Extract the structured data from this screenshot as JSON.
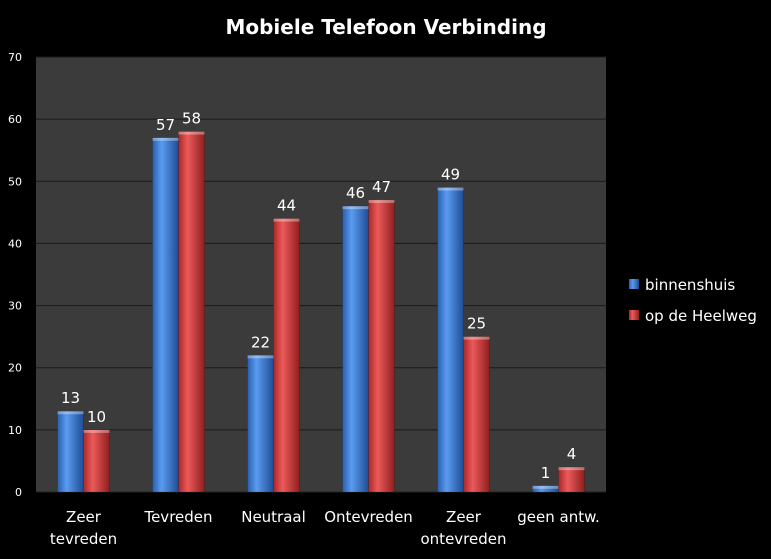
{
  "chart_data": {
    "type": "bar",
    "title": "Mobiele Telefoon Verbinding",
    "categories": [
      "Zeer tevreden",
      "Tevreden",
      "Neutraal",
      "Ontevreden",
      "Zeer ontevreden",
      "geen antw."
    ],
    "category_lines": [
      [
        "Zeer",
        "tevreden"
      ],
      [
        "Tevreden"
      ],
      [
        "Neutraal"
      ],
      [
        "Ontevreden"
      ],
      [
        "Zeer",
        "ontevreden"
      ],
      [
        "geen antw."
      ]
    ],
    "series": [
      {
        "name": "binnenshuis",
        "values": [
          13,
          57,
          22,
          46,
          49,
          1
        ],
        "color": "#3a78d0"
      },
      {
        "name": "op de Heelweg",
        "values": [
          10,
          58,
          44,
          47,
          25,
          4
        ],
        "color": "#d63c3c"
      }
    ],
    "ylim": [
      0,
      70
    ],
    "yticks": [
      "0",
      "10",
      "20",
      "30",
      "40",
      "50",
      "60",
      "70"
    ],
    "grid": true,
    "legend": "right",
    "plot_background": "#3b3b3b"
  }
}
